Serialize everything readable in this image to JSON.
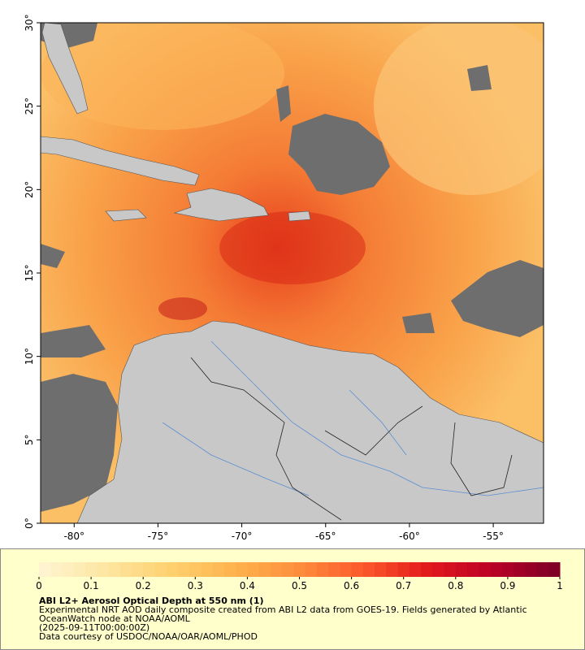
{
  "chart_data": {
    "type": "map",
    "title": "ABI L2+ Aerosol Optical Depth at 550 nm (1)",
    "description": "Experimental NRT AOD daily composite created from ABI L2 data from GOES-19. Fields generated by Atlantic OceanWatch node at NOAA/AOML",
    "timestamp": "(2025-09-11T00:00:00Z)",
    "credit": "Data courtesy of USDOC/NOAA/OAR/AOML/PHOD",
    "xlim": [
      -82,
      -52
    ],
    "ylim": [
      0,
      30
    ],
    "xticks": [
      {
        "value": -80,
        "label": "-80°"
      },
      {
        "value": -75,
        "label": "-75°"
      },
      {
        "value": -70,
        "label": "-70°"
      },
      {
        "value": -65,
        "label": "-65°"
      },
      {
        "value": -60,
        "label": "-60°"
      },
      {
        "value": -55,
        "label": "-55°"
      }
    ],
    "yticks": [
      {
        "value": 0,
        "label": "0°"
      },
      {
        "value": 5,
        "label": "5°"
      },
      {
        "value": 10,
        "label": "10°"
      },
      {
        "value": 15,
        "label": "15°"
      },
      {
        "value": 20,
        "label": "20°"
      },
      {
        "value": 25,
        "label": "25°"
      },
      {
        "value": 30,
        "label": "30°"
      }
    ],
    "colorbar": {
      "lim": [
        0,
        1
      ],
      "ticks": [
        0,
        0.1,
        0.2,
        0.3,
        0.4,
        0.5,
        0.6,
        0.7,
        0.8,
        0.9,
        1
      ],
      "colors": [
        "#fff4cf",
        "#fee5a0",
        "#fed06e",
        "#feb24c",
        "#fd8d3c",
        "#fc5a2b",
        "#e31a1c",
        "#bd0026",
        "#800026"
      ]
    }
  }
}
